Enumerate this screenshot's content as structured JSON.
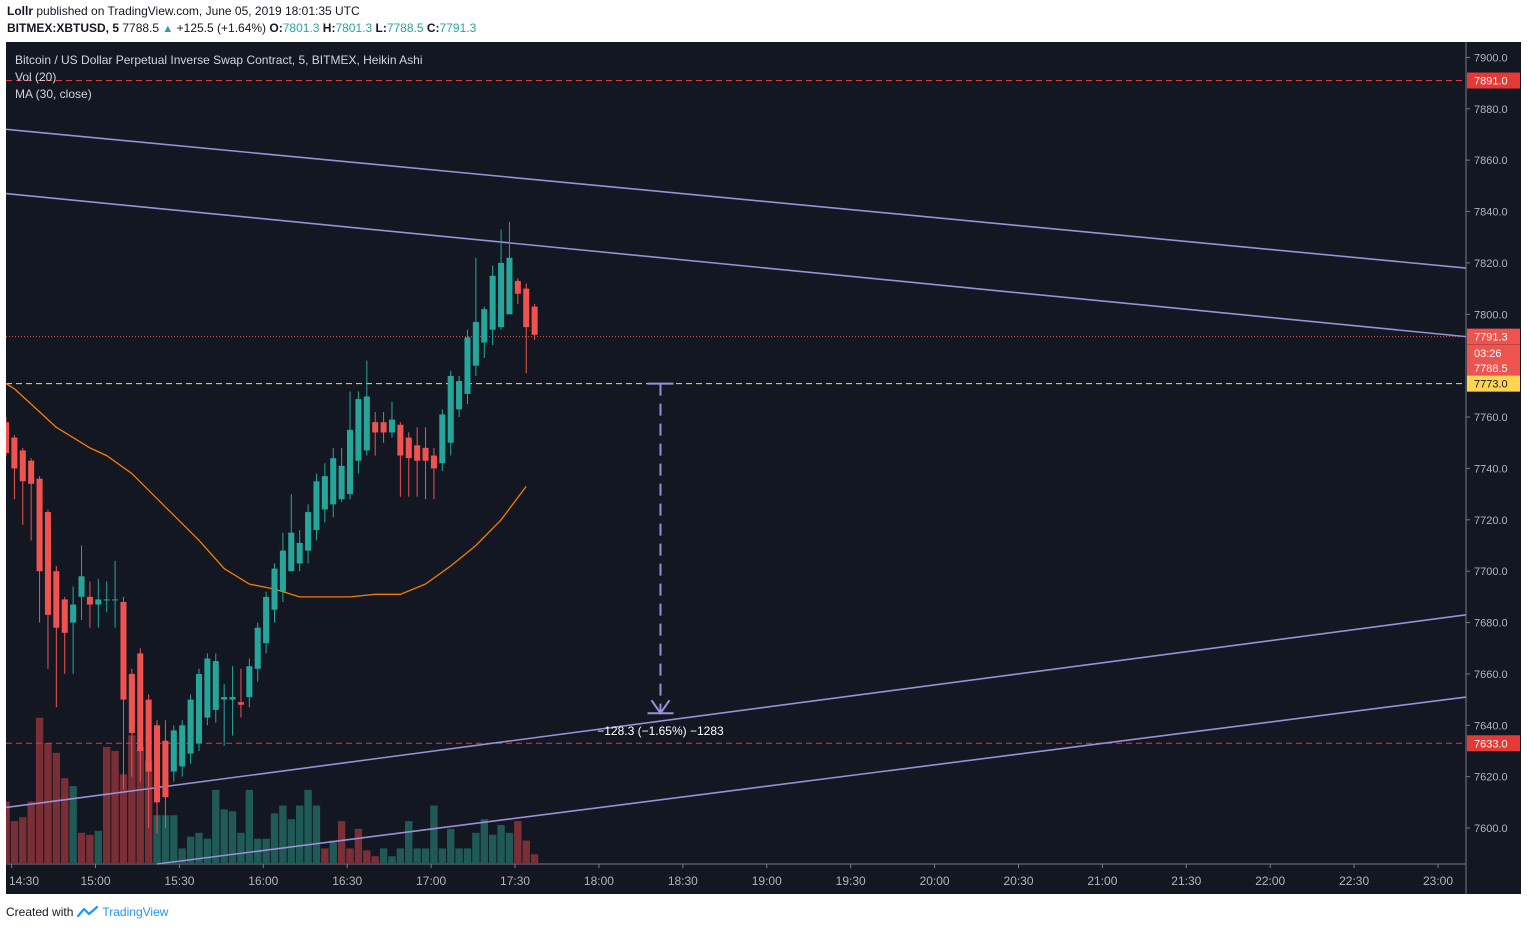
{
  "header": {
    "author": "Lollr",
    "published_text": "published on TradingView.com, June 05, 2019 18:01:35 UTC",
    "symbol": "BITMEX:XBTUSD, 5",
    "last": "7788.5",
    "change": "+125.5 (+1.64%)",
    "o_label": "O:",
    "o_value": "7801.3",
    "h_label": "H:",
    "h_value": "7801.3",
    "l_label": "L:",
    "l_value": "7788.5",
    "c_label": "C:",
    "c_value": "7791.3"
  },
  "legend": {
    "title": "Bitcoin / US Dollar Perpetual Inverse Swap Contract, 5, BITMEX, Heikin Ashi",
    "vol": "Vol (20)",
    "ma": "MA (30, close)"
  },
  "footer": {
    "created_with": "Created with",
    "brand": "TradingView"
  },
  "colors": {
    "background": "#131722",
    "bull": "#26a69a",
    "bear": "#ef5350",
    "vol_bull": "#1f5a57",
    "vol_bear": "#7a2e36",
    "ma": "#f57c00",
    "trendline": "#9b8fd8",
    "hline_red": "#e53935",
    "hline_yellow": "#ffd54f",
    "last_price": "#ef5350"
  },
  "chart_data": {
    "type": "candlestick",
    "chart_style": "Heikin Ashi",
    "symbol": "BITMEX:XBTUSD",
    "interval": "5",
    "y_axis": {
      "ticks": [
        "7900.0",
        "7880.0",
        "7860.0",
        "7840.0",
        "7820.0",
        "7800.0",
        "7760.0",
        "7740.0",
        "7720.0",
        "7700.0",
        "7680.0",
        "7660.0",
        "7640.0",
        "7620.0",
        "7600.0"
      ],
      "range": [
        7586,
        7906
      ]
    },
    "x_axis": {
      "ticks": [
        "14:30",
        "15:00",
        "15:30",
        "16:00",
        "16:30",
        "17:00",
        "17:30",
        "18:00",
        "18:30",
        "19:00",
        "19:30",
        "20:00",
        "20:30",
        "21:00",
        "21:30",
        "22:00",
        "22:30",
        "23:00"
      ],
      "range_minutes": [
        868,
        1390
      ]
    },
    "price_labels": [
      {
        "text": "7891.0",
        "price": 7891.0,
        "style": "red-dashed"
      },
      {
        "text": "7791.3",
        "price": 7791.3,
        "style": "last-price"
      },
      {
        "text": "03:26",
        "price": 7785.0,
        "style": "countdown"
      },
      {
        "text": "7788.5",
        "price": 7779.0,
        "style": "close"
      },
      {
        "text": "7773.0",
        "price": 7773.0,
        "style": "yellow-dashed"
      },
      {
        "text": "7633.0",
        "price": 7633.0,
        "style": "red-dashed"
      }
    ],
    "candles": [
      {
        "t": 868,
        "o": 7758,
        "h": 7760,
        "l": 7745,
        "c": 7746
      },
      {
        "t": 871,
        "o": 7752,
        "h": 7753,
        "l": 7728,
        "c": 7740
      },
      {
        "t": 874,
        "o": 7747,
        "h": 7748,
        "l": 7718,
        "c": 7735
      },
      {
        "t": 877,
        "o": 7743,
        "h": 7744,
        "l": 7712,
        "c": 7734
      },
      {
        "t": 880,
        "o": 7736,
        "h": 7737,
        "l": 7680,
        "c": 7700
      },
      {
        "t": 883,
        "o": 7723,
        "h": 7724,
        "l": 7662,
        "c": 7683
      },
      {
        "t": 886,
        "o": 7700,
        "h": 7702,
        "l": 7647,
        "c": 7678
      },
      {
        "t": 889,
        "o": 7689,
        "h": 7690,
        "l": 7660,
        "c": 7676
      },
      {
        "t": 892,
        "o": 7680,
        "h": 7694,
        "l": 7660,
        "c": 7687
      },
      {
        "t": 895,
        "o": 7690,
        "h": 7710,
        "l": 7681,
        "c": 7698
      },
      {
        "t": 898,
        "o": 7690,
        "h": 7696,
        "l": 7678,
        "c": 7687
      },
      {
        "t": 901,
        "o": 7687,
        "h": 7697,
        "l": 7678,
        "c": 7689
      },
      {
        "t": 904,
        "o": 7689,
        "h": 7696,
        "l": 7684,
        "c": 7689
      },
      {
        "t": 907,
        "o": 7689,
        "h": 7704,
        "l": 7678,
        "c": 7689
      },
      {
        "t": 910,
        "o": 7688,
        "h": 7690,
        "l": 7615,
        "c": 7650
      },
      {
        "t": 913,
        "o": 7660,
        "h": 7662,
        "l": 7620,
        "c": 7637
      },
      {
        "t": 916,
        "o": 7668,
        "h": 7670,
        "l": 7618,
        "c": 7630
      },
      {
        "t": 919,
        "o": 7650,
        "h": 7652,
        "l": 7600,
        "c": 7622
      },
      {
        "t": 922,
        "o": 7640,
        "h": 7642,
        "l": 7598,
        "c": 7610
      },
      {
        "t": 925,
        "o": 7634,
        "h": 7642,
        "l": 7600,
        "c": 7612
      },
      {
        "t": 928,
        "o": 7622,
        "h": 7640,
        "l": 7618,
        "c": 7638
      },
      {
        "t": 931,
        "o": 7624,
        "h": 7642,
        "l": 7620,
        "c": 7640
      },
      {
        "t": 934,
        "o": 7629,
        "h": 7652,
        "l": 7625,
        "c": 7650
      },
      {
        "t": 937,
        "o": 7633,
        "h": 7662,
        "l": 7630,
        "c": 7660
      },
      {
        "t": 940,
        "o": 7643,
        "h": 7668,
        "l": 7640,
        "c": 7666
      },
      {
        "t": 943,
        "o": 7646,
        "h": 7668,
        "l": 7641,
        "c": 7665
      },
      {
        "t": 946,
        "o": 7650,
        "h": 7656,
        "l": 7632,
        "c": 7651
      },
      {
        "t": 949,
        "o": 7650,
        "h": 7663,
        "l": 7636,
        "c": 7651
      },
      {
        "t": 952,
        "o": 7649,
        "h": 7662,
        "l": 7643,
        "c": 7648
      },
      {
        "t": 955,
        "o": 7651,
        "h": 7666,
        "l": 7647,
        "c": 7663
      },
      {
        "t": 958,
        "o": 7662,
        "h": 7680,
        "l": 7657,
        "c": 7678
      },
      {
        "t": 961,
        "o": 7672,
        "h": 7692,
        "l": 7668,
        "c": 7690
      },
      {
        "t": 964,
        "o": 7685,
        "h": 7703,
        "l": 7680,
        "c": 7701
      },
      {
        "t": 967,
        "o": 7692,
        "h": 7715,
        "l": 7688,
        "c": 7708
      },
      {
        "t": 970,
        "o": 7700,
        "h": 7730,
        "l": 7700,
        "c": 7715
      },
      {
        "t": 973,
        "o": 7703,
        "h": 7716,
        "l": 7700,
        "c": 7711
      },
      {
        "t": 976,
        "o": 7708,
        "h": 7726,
        "l": 7703,
        "c": 7723
      },
      {
        "t": 979,
        "o": 7716,
        "h": 7738,
        "l": 7712,
        "c": 7735
      },
      {
        "t": 982,
        "o": 7724,
        "h": 7742,
        "l": 7719,
        "c": 7737
      },
      {
        "t": 985,
        "o": 7726,
        "h": 7748,
        "l": 7721,
        "c": 7744
      },
      {
        "t": 988,
        "o": 7728,
        "h": 7748,
        "l": 7727,
        "c": 7741
      },
      {
        "t": 991,
        "o": 7730,
        "h": 7770,
        "l": 7728,
        "c": 7755
      },
      {
        "t": 994,
        "o": 7743,
        "h": 7770,
        "l": 7738,
        "c": 7767
      },
      {
        "t": 997,
        "o": 7747,
        "h": 7782,
        "l": 7745,
        "c": 7768
      },
      {
        "t": 1000,
        "o": 7758,
        "h": 7762,
        "l": 7745,
        "c": 7754
      },
      {
        "t": 1003,
        "o": 7758,
        "h": 7762,
        "l": 7750,
        "c": 7754
      },
      {
        "t": 1006,
        "o": 7754,
        "h": 7766,
        "l": 7752,
        "c": 7759
      },
      {
        "t": 1009,
        "o": 7757,
        "h": 7758,
        "l": 7729,
        "c": 7745
      },
      {
        "t": 1012,
        "o": 7752,
        "h": 7754,
        "l": 7729,
        "c": 7744
      },
      {
        "t": 1015,
        "o": 7749,
        "h": 7756,
        "l": 7729,
        "c": 7743
      },
      {
        "t": 1018,
        "o": 7748,
        "h": 7756,
        "l": 7728,
        "c": 7743
      },
      {
        "t": 1021,
        "o": 7745,
        "h": 7748,
        "l": 7728,
        "c": 7740
      },
      {
        "t": 1024,
        "o": 7742,
        "h": 7763,
        "l": 7739,
        "c": 7761
      },
      {
        "t": 1027,
        "o": 7750,
        "h": 7778,
        "l": 7745,
        "c": 7776
      },
      {
        "t": 1030,
        "o": 7763,
        "h": 7776,
        "l": 7760,
        "c": 7774
      },
      {
        "t": 1033,
        "o": 7769,
        "h": 7794,
        "l": 7765,
        "c": 7791
      },
      {
        "t": 1036,
        "o": 7780,
        "h": 7822,
        "l": 7776,
        "c": 7797
      },
      {
        "t": 1039,
        "o": 7789,
        "h": 7803,
        "l": 7783,
        "c": 7802
      },
      {
        "t": 1042,
        "o": 7794,
        "h": 7819,
        "l": 7788,
        "c": 7815
      },
      {
        "t": 1045,
        "o": 7795,
        "h": 7833,
        "l": 7794,
        "c": 7820
      },
      {
        "t": 1048,
        "o": 7800,
        "h": 7836,
        "l": 7800,
        "c": 7822
      },
      {
        "t": 1051,
        "o": 7813,
        "h": 7814,
        "l": 7804,
        "c": 7808
      },
      {
        "t": 1054,
        "o": 7810,
        "h": 7812,
        "l": 7777,
        "c": 7795
      },
      {
        "t": 1057,
        "o": 7803,
        "h": 7804,
        "l": 7790,
        "c": 7792
      }
    ],
    "volume": [
      {
        "t": 868,
        "v": 32,
        "dir": "down"
      },
      {
        "t": 871,
        "v": 22,
        "dir": "down"
      },
      {
        "t": 874,
        "v": 24,
        "dir": "down"
      },
      {
        "t": 877,
        "v": 32,
        "dir": "down"
      },
      {
        "t": 880,
        "v": 75,
        "dir": "down"
      },
      {
        "t": 883,
        "v": 62,
        "dir": "down"
      },
      {
        "t": 886,
        "v": 57,
        "dir": "down"
      },
      {
        "t": 889,
        "v": 44,
        "dir": "down"
      },
      {
        "t": 892,
        "v": 40,
        "dir": "up"
      },
      {
        "t": 895,
        "v": 16,
        "dir": "down"
      },
      {
        "t": 898,
        "v": 15,
        "dir": "down"
      },
      {
        "t": 901,
        "v": 17,
        "dir": "up"
      },
      {
        "t": 904,
        "v": 60,
        "dir": "down"
      },
      {
        "t": 907,
        "v": 58,
        "dir": "down"
      },
      {
        "t": 910,
        "v": 46,
        "dir": "down"
      },
      {
        "t": 913,
        "v": 66,
        "dir": "down"
      },
      {
        "t": 916,
        "v": 60,
        "dir": "down"
      },
      {
        "t": 919,
        "v": 53,
        "dir": "down"
      },
      {
        "t": 922,
        "v": 25,
        "dir": "up"
      },
      {
        "t": 925,
        "v": 25,
        "dir": "up"
      },
      {
        "t": 928,
        "v": 25,
        "dir": "up"
      },
      {
        "t": 931,
        "v": 8,
        "dir": "up"
      },
      {
        "t": 934,
        "v": 14,
        "dir": "up"
      },
      {
        "t": 937,
        "v": 16,
        "dir": "up"
      },
      {
        "t": 940,
        "v": 13,
        "dir": "up"
      },
      {
        "t": 943,
        "v": 38,
        "dir": "up"
      },
      {
        "t": 946,
        "v": 28,
        "dir": "up"
      },
      {
        "t": 949,
        "v": 27,
        "dir": "up"
      },
      {
        "t": 952,
        "v": 16,
        "dir": "up"
      },
      {
        "t": 955,
        "v": 38,
        "dir": "up"
      },
      {
        "t": 958,
        "v": 13,
        "dir": "up"
      },
      {
        "t": 961,
        "v": 13,
        "dir": "up"
      },
      {
        "t": 964,
        "v": 26,
        "dir": "up"
      },
      {
        "t": 967,
        "v": 30,
        "dir": "up"
      },
      {
        "t": 970,
        "v": 23,
        "dir": "up"
      },
      {
        "t": 973,
        "v": 30,
        "dir": "up"
      },
      {
        "t": 976,
        "v": 38,
        "dir": "up"
      },
      {
        "t": 979,
        "v": 30,
        "dir": "up"
      },
      {
        "t": 982,
        "v": 8,
        "dir": "down"
      },
      {
        "t": 985,
        "v": 12,
        "dir": "up"
      },
      {
        "t": 988,
        "v": 22,
        "dir": "down"
      },
      {
        "t": 991,
        "v": 8,
        "dir": "down"
      },
      {
        "t": 994,
        "v": 18,
        "dir": "down"
      },
      {
        "t": 997,
        "v": 7,
        "dir": "down"
      },
      {
        "t": 1000,
        "v": 4,
        "dir": "down"
      },
      {
        "t": 1003,
        "v": 8,
        "dir": "up"
      },
      {
        "t": 1006,
        "v": 4,
        "dir": "up"
      },
      {
        "t": 1009,
        "v": 8,
        "dir": "up"
      },
      {
        "t": 1012,
        "v": 22,
        "dir": "up"
      },
      {
        "t": 1015,
        "v": 8,
        "dir": "up"
      },
      {
        "t": 1018,
        "v": 8,
        "dir": "up"
      },
      {
        "t": 1021,
        "v": 30,
        "dir": "up"
      },
      {
        "t": 1024,
        "v": 8,
        "dir": "up"
      },
      {
        "t": 1027,
        "v": 18,
        "dir": "up"
      },
      {
        "t": 1030,
        "v": 8,
        "dir": "up"
      },
      {
        "t": 1033,
        "v": 8,
        "dir": "up"
      },
      {
        "t": 1036,
        "v": 16,
        "dir": "up"
      },
      {
        "t": 1039,
        "v": 23,
        "dir": "up"
      },
      {
        "t": 1042,
        "v": 15,
        "dir": "up"
      },
      {
        "t": 1045,
        "v": 20,
        "dir": "up"
      },
      {
        "t": 1048,
        "v": 16,
        "dir": "up"
      },
      {
        "t": 1051,
        "v": 22,
        "dir": "down"
      },
      {
        "t": 1054,
        "v": 12,
        "dir": "down"
      },
      {
        "t": 1057,
        "v": 5,
        "dir": "down"
      }
    ],
    "volume_max": 100,
    "moving_average": [
      {
        "t": 868,
        "p": 7773
      },
      {
        "t": 871,
        "p": 7771
      },
      {
        "t": 874,
        "p": 7768
      },
      {
        "t": 880,
        "p": 7762
      },
      {
        "t": 886,
        "p": 7756
      },
      {
        "t": 892,
        "p": 7752
      },
      {
        "t": 898,
        "p": 7748
      },
      {
        "t": 904,
        "p": 7745
      },
      {
        "t": 913,
        "p": 7738
      },
      {
        "t": 925,
        "p": 7725
      },
      {
        "t": 937,
        "p": 7712
      },
      {
        "t": 946,
        "p": 7701
      },
      {
        "t": 955,
        "p": 7695
      },
      {
        "t": 964,
        "p": 7693
      },
      {
        "t": 973,
        "p": 7690
      },
      {
        "t": 982,
        "p": 7690
      },
      {
        "t": 991,
        "p": 7690
      },
      {
        "t": 1000,
        "p": 7691
      },
      {
        "t": 1009,
        "p": 7691
      },
      {
        "t": 1018,
        "p": 7695
      },
      {
        "t": 1027,
        "p": 7702
      },
      {
        "t": 1036,
        "p": 7710
      },
      {
        "t": 1045,
        "p": 7720
      },
      {
        "t": 1054,
        "p": 7733
      }
    ],
    "trendlines": [
      {
        "t1": 868,
        "p1": 7872,
        "t2": 1390,
        "p2": 7818
      },
      {
        "t1": 868,
        "p1": 7847,
        "t2": 1390,
        "p2": 7791.3
      },
      {
        "t1": 868,
        "p1": 7608,
        "t2": 1390,
        "p2": 7683
      },
      {
        "t1": 922,
        "p1": 7586,
        "t2": 1390,
        "p2": 7651
      }
    ],
    "horizontal_lines": [
      {
        "price": 7891.0,
        "color": "red"
      },
      {
        "price": 7791.3,
        "color": "last"
      },
      {
        "price": 7773.0,
        "color": "yellow"
      },
      {
        "price": 7633.0,
        "color": "red"
      }
    ],
    "measure": {
      "t": 1102,
      "from": 7773.0,
      "to": 7644.7,
      "label": "−128.3 (−1.65%) −1283"
    }
  }
}
